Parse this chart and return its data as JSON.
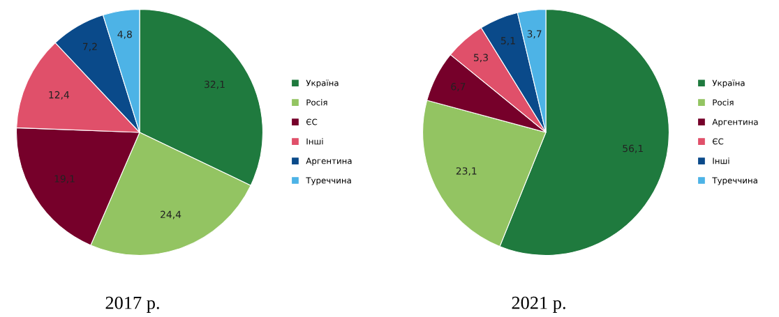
{
  "chart_data": [
    {
      "type": "pie",
      "title": "2017 р.",
      "categories": [
        "Україна",
        "Росія",
        "ЄС",
        "Інші",
        "Аргентина",
        "Туреччина"
      ],
      "values": [
        32.1,
        24.4,
        19.1,
        12.4,
        7.2,
        4.8
      ],
      "value_labels": [
        "32,1",
        "24,4",
        "19,1",
        "12,4",
        "7,2",
        "4,8"
      ],
      "colors": [
        "#1f7a3e",
        "#93c462",
        "#76002a",
        "#e0506a",
        "#0a4a8a",
        "#4db3e6"
      ],
      "legend": "right"
    },
    {
      "type": "pie",
      "title": "2021 р.",
      "categories": [
        "Україна",
        "Росія",
        "Аргентина",
        "ЄС",
        "Інші",
        "Туреччина"
      ],
      "values": [
        56.1,
        23.1,
        6.7,
        5.3,
        5.1,
        3.7
      ],
      "value_labels": [
        "56,1",
        "23,1",
        "6,7",
        "5,3",
        "5,1",
        "3,7"
      ],
      "colors": [
        "#1f7a3e",
        "#93c462",
        "#76002a",
        "#e0506a",
        "#0a4a8a",
        "#4db3e6"
      ],
      "legend": "right"
    }
  ]
}
